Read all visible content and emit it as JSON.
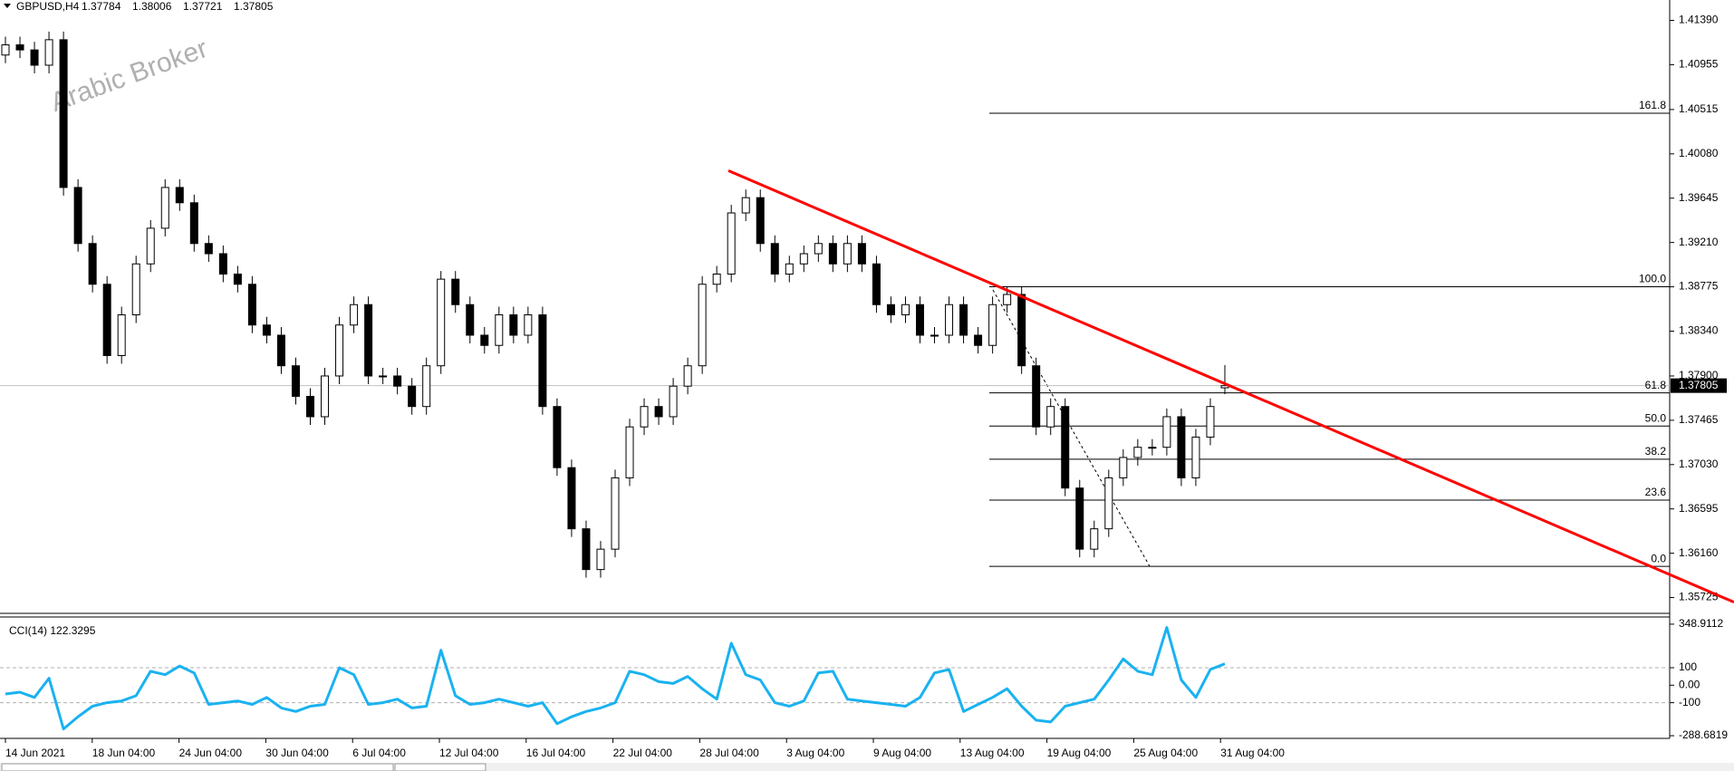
{
  "chart_data": [
    {
      "type": "candlestick",
      "title": "GBPUSD,H4",
      "last_bar": [
        1.37784,
        1.38006,
        1.37721,
        1.37805
      ],
      "watermark": "Arabic Broker",
      "color": "#000000",
      "up_fill": "#ffffff",
      "down_fill": "#000000",
      "candles": [
        [
          1.4105,
          1.4123,
          1.4097,
          1.4115
        ],
        [
          1.4115,
          1.4123,
          1.4102,
          1.411
        ],
        [
          1.411,
          1.4118,
          1.4087,
          1.4095
        ],
        [
          1.4095,
          1.4128,
          1.4087,
          1.412
        ],
        [
          1.412,
          1.4128,
          1.3967,
          1.3975
        ],
        [
          1.3975,
          1.3983,
          1.3912,
          1.392
        ],
        [
          1.392,
          1.3928,
          1.3872,
          1.388
        ],
        [
          1.388,
          1.3888,
          1.3802,
          1.381
        ],
        [
          1.381,
          1.3858,
          1.3802,
          1.385
        ],
        [
          1.385,
          1.3908,
          1.3842,
          1.39
        ],
        [
          1.39,
          1.3943,
          1.3892,
          1.3935
        ],
        [
          1.3935,
          1.3983,
          1.3927,
          1.3975
        ],
        [
          1.3975,
          1.3983,
          1.3952,
          1.396
        ],
        [
          1.396,
          1.3968,
          1.3912,
          1.392
        ],
        [
          1.392,
          1.3928,
          1.3902,
          1.391
        ],
        [
          1.391,
          1.3918,
          1.3882,
          1.389
        ],
        [
          1.389,
          1.3898,
          1.3872,
          1.388
        ],
        [
          1.388,
          1.3888,
          1.3832,
          1.384
        ],
        [
          1.384,
          1.3848,
          1.3822,
          1.383
        ],
        [
          1.383,
          1.3838,
          1.3792,
          1.38
        ],
        [
          1.38,
          1.3808,
          1.3762,
          1.377
        ],
        [
          1.377,
          1.3778,
          1.3742,
          1.375
        ],
        [
          1.375,
          1.3798,
          1.3742,
          1.379
        ],
        [
          1.379,
          1.3848,
          1.3782,
          1.384
        ],
        [
          1.384,
          1.3868,
          1.3832,
          1.386
        ],
        [
          1.386,
          1.3868,
          1.3782,
          1.379
        ],
        [
          1.379,
          1.3798,
          1.3782,
          1.379
        ],
        [
          1.379,
          1.3798,
          1.3772,
          1.378
        ],
        [
          1.378,
          1.3788,
          1.3752,
          1.376
        ],
        [
          1.376,
          1.3808,
          1.3752,
          1.38
        ],
        [
          1.38,
          1.3893,
          1.3792,
          1.3885
        ],
        [
          1.3885,
          1.3893,
          1.3852,
          1.386
        ],
        [
          1.386,
          1.3868,
          1.3822,
          1.383
        ],
        [
          1.383,
          1.3838,
          1.3812,
          1.382
        ],
        [
          1.382,
          1.3858,
          1.3812,
          1.385
        ],
        [
          1.385,
          1.3858,
          1.3822,
          1.383
        ],
        [
          1.383,
          1.3858,
          1.3822,
          1.385
        ],
        [
          1.385,
          1.3858,
          1.3752,
          1.376
        ],
        [
          1.376,
          1.3768,
          1.3692,
          1.37
        ],
        [
          1.37,
          1.3708,
          1.3632,
          1.364
        ],
        [
          1.364,
          1.3648,
          1.3592,
          1.36
        ],
        [
          1.36,
          1.3628,
          1.3592,
          1.362
        ],
        [
          1.362,
          1.3698,
          1.3612,
          1.369
        ],
        [
          1.369,
          1.3748,
          1.3682,
          1.374
        ],
        [
          1.374,
          1.3768,
          1.3732,
          1.376
        ],
        [
          1.376,
          1.3768,
          1.3742,
          1.375
        ],
        [
          1.375,
          1.3788,
          1.3742,
          1.378
        ],
        [
          1.378,
          1.3808,
          1.3772,
          1.38
        ],
        [
          1.38,
          1.3888,
          1.3792,
          1.388
        ],
        [
          1.388,
          1.3898,
          1.3872,
          1.389
        ],
        [
          1.389,
          1.3958,
          1.3882,
          1.395
        ],
        [
          1.395,
          1.3973,
          1.3942,
          1.3965
        ],
        [
          1.3965,
          1.3973,
          1.3912,
          1.392
        ],
        [
          1.392,
          1.3928,
          1.3882,
          1.389
        ],
        [
          1.389,
          1.3908,
          1.3882,
          1.39
        ],
        [
          1.39,
          1.3918,
          1.3892,
          1.391
        ],
        [
          1.391,
          1.3928,
          1.3902,
          1.392
        ],
        [
          1.392,
          1.3928,
          1.3892,
          1.39
        ],
        [
          1.39,
          1.3928,
          1.3892,
          1.392
        ],
        [
          1.392,
          1.3928,
          1.3892,
          1.39
        ],
        [
          1.39,
          1.3908,
          1.3852,
          1.386
        ],
        [
          1.386,
          1.3868,
          1.3842,
          1.385
        ],
        [
          1.385,
          1.3868,
          1.3842,
          1.386
        ],
        [
          1.386,
          1.3868,
          1.3822,
          1.383
        ],
        [
          1.383,
          1.3838,
          1.3822,
          1.383
        ],
        [
          1.383,
          1.3868,
          1.3822,
          1.386
        ],
        [
          1.386,
          1.3868,
          1.3822,
          1.383
        ],
        [
          1.383,
          1.3838,
          1.3812,
          1.382
        ],
        [
          1.382,
          1.3868,
          1.3812,
          1.386
        ],
        [
          1.386,
          1.3878,
          1.3852,
          1.387
        ],
        [
          1.387,
          1.3878,
          1.3792,
          1.38
        ],
        [
          1.38,
          1.3808,
          1.3732,
          1.374
        ],
        [
          1.374,
          1.3768,
          1.3732,
          1.376
        ],
        [
          1.376,
          1.3768,
          1.3672,
          1.368
        ],
        [
          1.368,
          1.3688,
          1.3612,
          1.362
        ],
        [
          1.362,
          1.3648,
          1.3612,
          1.364
        ],
        [
          1.364,
          1.3698,
          1.3632,
          1.369
        ],
        [
          1.369,
          1.3718,
          1.3682,
          1.371
        ],
        [
          1.371,
          1.3728,
          1.3702,
          1.372
        ],
        [
          1.372,
          1.3728,
          1.3712,
          1.372
        ],
        [
          1.372,
          1.3758,
          1.3712,
          1.375
        ],
        [
          1.375,
          1.3758,
          1.3682,
          1.369
        ],
        [
          1.369,
          1.3738,
          1.3682,
          1.373
        ],
        [
          1.373,
          1.3768,
          1.3722,
          1.376
        ],
        [
          1.37784,
          1.38006,
          1.37721,
          1.37805
        ]
      ],
      "ylim": [
        1.3557,
        1.4159
      ],
      "yticks": [
        {
          "value": 1.4139,
          "label": "1.41390"
        },
        1.40955,
        1.40515,
        {
          "value": 1.4008,
          "label": "1.40080"
        },
        1.39645,
        {
          "value": 1.3921,
          "label": "1.39210"
        },
        1.38775,
        {
          "value": 1.3834,
          "label": "1.38340"
        },
        {
          "value": 1.379,
          "label": "1.37900"
        },
        1.37465,
        {
          "value": 1.3703,
          "label": "1.37030"
        },
        1.36595,
        {
          "value": 1.3616,
          "label": "1.36160"
        },
        1.35725
      ],
      "last_price": 1.37805,
      "last_price_color": "#000000",
      "trendline": {
        "color": "#ff0000",
        "values": [
          1.39915,
          1.3568
        ]
      },
      "fibonacci": [
        {
          "price": 1.40479,
          "label": "161.8"
        },
        {
          "price": 1.38776,
          "label": "100.0"
        },
        {
          "price": 1.37734,
          "label": "61.8"
        },
        {
          "price": 1.37409,
          "label": "50.0"
        },
        {
          "price": 1.37083,
          "label": "38.2"
        },
        {
          "price": 1.36682,
          "label": "23.6"
        },
        {
          "price": 1.36031,
          "label": "0.0"
        }
      ],
      "time_labels": [
        "14 Jun 2021",
        "18 Jun 04:00",
        "24 Jun 04:00",
        "30 Jun 04:00",
        "6 Jul 04:00",
        "12 Jul 04:00",
        "16 Jul 04:00",
        "22 Jul 04:00",
        "28 Jul 04:00",
        "3 Aug 04:00",
        "9 Aug 04:00",
        "13 Aug 04:00",
        "19 Aug 04:00",
        "25 Aug 04:00",
        "31 Aug 04:00"
      ]
    },
    {
      "type": "line",
      "title": "CCI(14) 122.3295",
      "color": "#1ab2f0",
      "values": [
        -50,
        -40,
        -70,
        40,
        -250,
        -180,
        -120,
        -100,
        -90,
        -60,
        80,
        60,
        110,
        70,
        -110,
        -100,
        -90,
        -110,
        -70,
        -130,
        -150,
        -120,
        -110,
        100,
        60,
        -110,
        -100,
        -80,
        -130,
        -120,
        200,
        -60,
        -110,
        -100,
        -80,
        -100,
        -120,
        -100,
        -220,
        -180,
        -150,
        -130,
        -100,
        80,
        60,
        20,
        10,
        50,
        -20,
        -80,
        240,
        60,
        30,
        -100,
        -120,
        -90,
        70,
        80,
        -80,
        -90,
        -100,
        -110,
        -120,
        -70,
        70,
        90,
        -150,
        -110,
        -70,
        -20,
        -120,
        -200,
        -210,
        -120,
        -100,
        -80,
        30,
        150,
        80,
        60,
        330,
        30,
        -70,
        90,
        122.3295
      ],
      "ylim": [
        -304,
        390
      ],
      "yticks": [
        348.9112,
        100,
        {
          "value": 0,
          "label": "0.00"
        },
        -100,
        -288.6819
      ],
      "levels": [
        100,
        -100
      ]
    }
  ]
}
